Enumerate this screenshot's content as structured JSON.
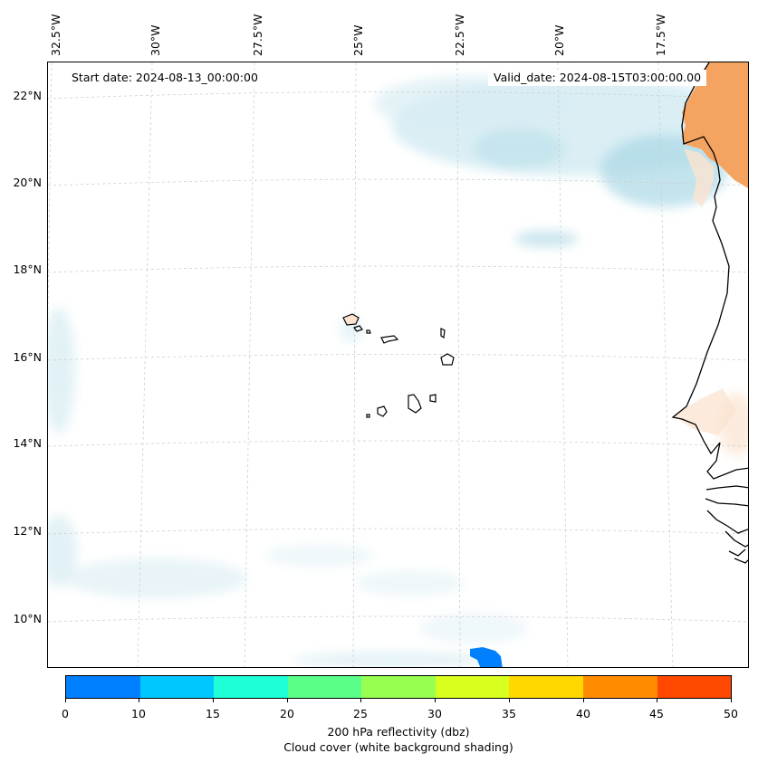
{
  "map": {
    "start_date": "Start date: 2024-08-13_00:00:00",
    "valid_date": "Valid_date: 2024-08-15T03:00:00.00",
    "lon_labels": [
      "32.5°W",
      "30°W",
      "27.5°W",
      "25°W",
      "22.5°W",
      "20°W",
      "17.5°W"
    ],
    "lat_labels": [
      "22°N",
      "20°N",
      "18°N",
      "16°N",
      "14°N",
      "12°N",
      "10°N"
    ],
    "colors": {
      "land_high": "#f4a460",
      "land_light": "#fbe3cf",
      "cloud": "#cde8f0",
      "cloud_dark": "#a9d7e5",
      "reflectivity_low": "#0080ff"
    }
  },
  "colorbar": {
    "ticks": [
      "0",
      "10",
      "15",
      "20",
      "25",
      "30",
      "35",
      "40",
      "45",
      "50"
    ],
    "colors": [
      "#0080ff",
      "#00c8ff",
      "#1effd8",
      "#5aff8a",
      "#96ff50",
      "#d8ff1e",
      "#ffd800",
      "#ff8c00",
      "#ff4800"
    ],
    "label": "200 hPa reflectivity (dbz)",
    "sublabel": "Cloud cover (white background shading)"
  }
}
